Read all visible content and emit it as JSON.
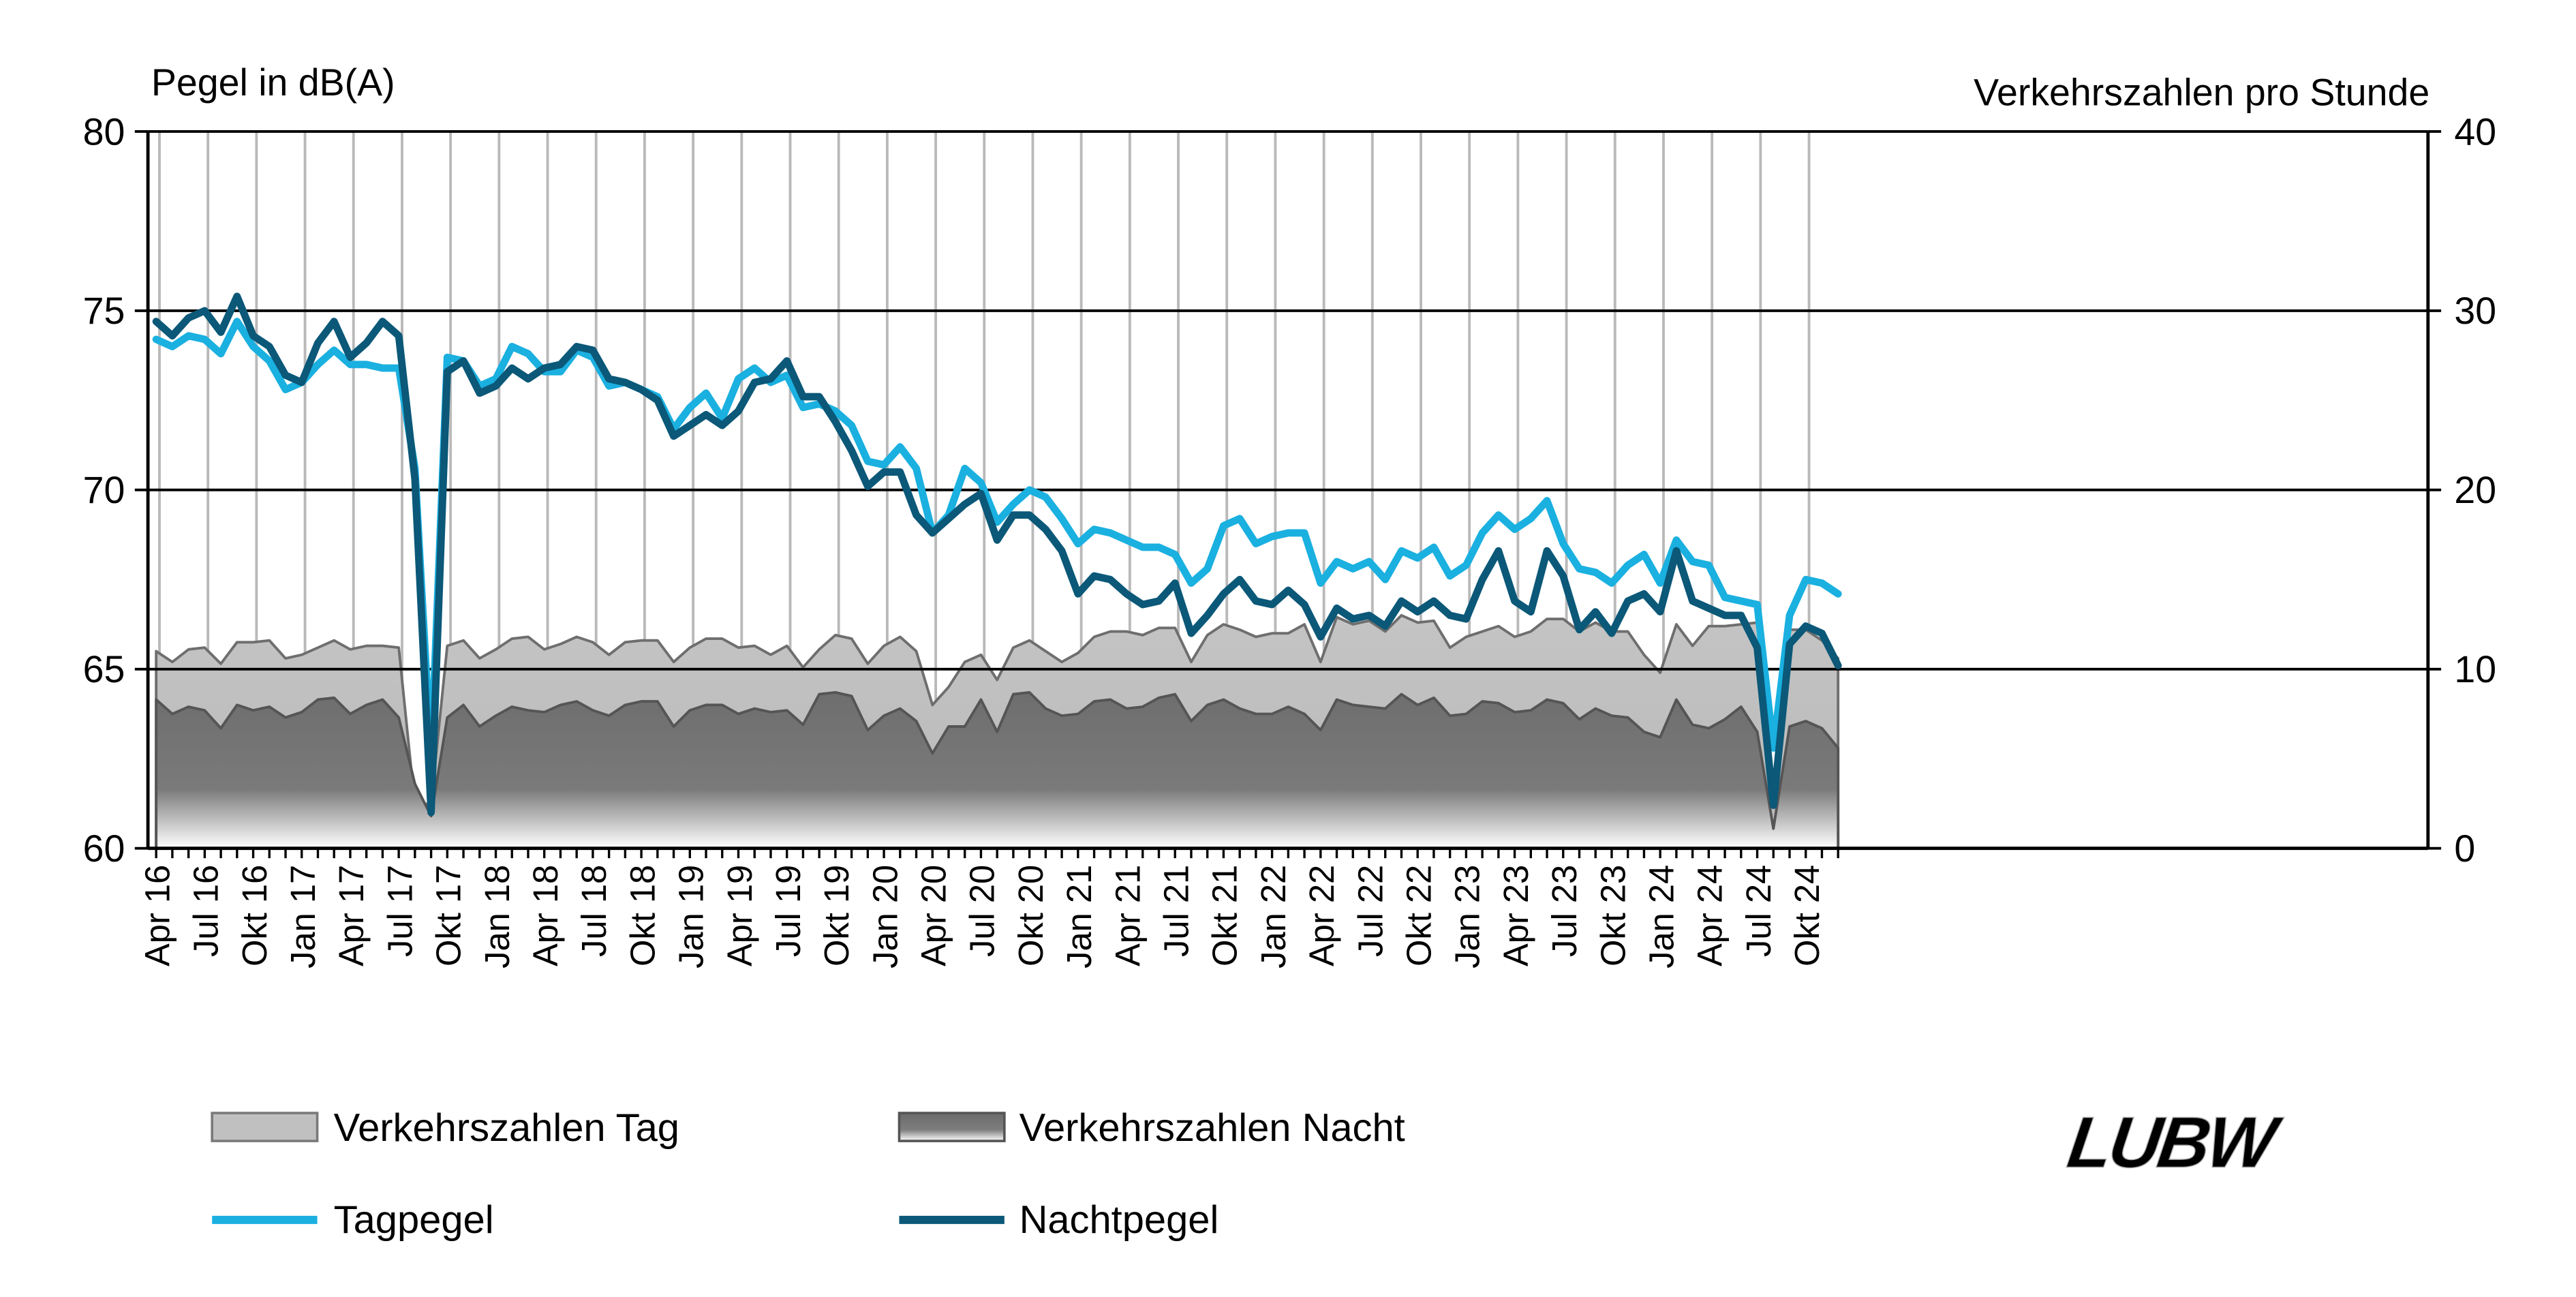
{
  "chart_data": {
    "type": "area+line",
    "ylabel_left": "Pegel in dB(A)",
    "ylabel_right": "Verkehrszahlen pro Stunde",
    "ylim_left": [
      60,
      80
    ],
    "ylim_right": [
      0,
      40
    ],
    "yticks_left": [
      "60",
      "65",
      "70",
      "75",
      "80"
    ],
    "yticks_right": [
      "0",
      "10",
      "20",
      "30",
      "40"
    ],
    "xticks": [
      "Apr 16",
      "Jul 16",
      "Okt 16",
      "Jan 17",
      "Apr 17",
      "Jul 17",
      "Okt 17",
      "Jan 18",
      "Apr 18",
      "Jul 18",
      "Okt 18",
      "Jan 19",
      "Apr 19",
      "Jul 19",
      "Okt 19",
      "Jan 20",
      "Apr 20",
      "Jul 20",
      "Okt 20",
      "Jan 21",
      "Apr 21",
      "Jul 21",
      "Okt 21",
      "Jan 22",
      "Apr 22",
      "Jul 22",
      "Okt 22",
      "Jan 23",
      "Apr 23",
      "Jul 23",
      "Okt 23",
      "Jan 24",
      "Apr 24",
      "Jul 24",
      "Okt 24"
    ],
    "x": [
      "2016-04",
      "2016-05",
      "2016-06",
      "2016-07",
      "2016-08",
      "2016-09",
      "2016-10",
      "2016-11",
      "2016-12",
      "2017-01",
      "2017-02",
      "2017-03",
      "2017-04",
      "2017-05",
      "2017-06",
      "2017-07",
      "2017-08",
      "2017-09",
      "2017-10",
      "2017-11",
      "2017-12",
      "2018-01",
      "2018-02",
      "2018-03",
      "2018-04",
      "2018-05",
      "2018-06",
      "2018-07",
      "2018-08",
      "2018-09",
      "2018-10",
      "2018-11",
      "2018-12",
      "2019-01",
      "2019-02",
      "2019-03",
      "2019-04",
      "2019-05",
      "2019-06",
      "2019-07",
      "2019-08",
      "2019-09",
      "2019-10",
      "2019-11",
      "2019-12",
      "2020-01",
      "2020-02",
      "2020-03",
      "2020-04",
      "2020-05",
      "2020-06",
      "2020-07",
      "2020-08",
      "2020-09",
      "2020-10",
      "2020-11",
      "2020-12",
      "2021-01",
      "2021-02",
      "2021-03",
      "2021-04",
      "2021-05",
      "2021-06",
      "2021-07",
      "2021-08",
      "2021-09",
      "2021-10",
      "2021-11",
      "2021-12",
      "2022-01",
      "2022-02",
      "2022-03",
      "2022-04",
      "2022-05",
      "2022-06",
      "2022-07",
      "2022-08",
      "2022-09",
      "2022-10",
      "2022-11",
      "2022-12",
      "2023-01",
      "2023-02",
      "2023-03",
      "2023-04",
      "2023-05",
      "2023-06",
      "2023-07",
      "2023-08",
      "2023-09",
      "2023-10",
      "2023-11",
      "2023-12",
      "2024-01",
      "2024-02",
      "2024-03",
      "2024-04",
      "2024-05",
      "2024-06",
      "2024-07",
      "2024-08",
      "2024-09",
      "2024-10",
      "2024-11",
      "2024-12"
    ],
    "series": [
      {
        "name": "Verkehrszahlen Tag",
        "axis": "right",
        "type": "area",
        "color": "#c0c0c0",
        "values": [
          11.0,
          10.4,
          11.1,
          11.2,
          10.3,
          11.5,
          11.5,
          11.6,
          10.6,
          10.8,
          11.2,
          11.6,
          11.1,
          11.3,
          11.3,
          11.2,
          2.4,
          2.5,
          11.3,
          11.6,
          10.6,
          11.1,
          11.7,
          11.8,
          11.1,
          11.4,
          11.8,
          11.5,
          10.8,
          11.5,
          11.6,
          11.6,
          10.4,
          11.2,
          11.7,
          11.7,
          11.2,
          11.3,
          10.8,
          11.3,
          10.1,
          11.1,
          11.9,
          11.7,
          10.3,
          11.3,
          11.8,
          11.0,
          8.0,
          9.0,
          10.4,
          10.8,
          9.4,
          11.2,
          11.6,
          11.0,
          10.4,
          10.9,
          11.8,
          12.1,
          12.1,
          11.9,
          12.3,
          12.3,
          10.4,
          11.9,
          12.5,
          12.2,
          11.8,
          12.0,
          12.0,
          12.5,
          10.4,
          12.9,
          12.5,
          12.7,
          12.1,
          13.0,
          12.6,
          12.7,
          11.2,
          11.8,
          12.1,
          12.4,
          11.8,
          12.1,
          12.8,
          12.8,
          12.1,
          12.6,
          12.1,
          12.1,
          10.8,
          9.8,
          12.5,
          11.3,
          12.4,
          12.4,
          12.5,
          12.6,
          2.6,
          12.2,
          12.2,
          11.6,
          10.6
        ]
      },
      {
        "name": "Verkehrszahlen Nacht",
        "axis": "right",
        "type": "area",
        "color": "#7d7d7d",
        "values": [
          8.3,
          7.5,
          7.9,
          7.7,
          6.7,
          8.0,
          7.7,
          7.9,
          7.3,
          7.6,
          8.3,
          8.4,
          7.5,
          8.0,
          8.3,
          7.3,
          3.6,
          1.8,
          7.3,
          8.0,
          6.8,
          7.4,
          7.9,
          7.7,
          7.6,
          8.0,
          8.2,
          7.7,
          7.4,
          8.0,
          8.2,
          8.2,
          6.8,
          7.7,
          8.0,
          8.0,
          7.5,
          7.8,
          7.6,
          7.7,
          6.9,
          8.6,
          8.7,
          8.5,
          6.6,
          7.4,
          7.8,
          7.1,
          5.3,
          6.8,
          6.8,
          8.3,
          6.5,
          8.6,
          8.7,
          7.8,
          7.4,
          7.5,
          8.2,
          8.3,
          7.8,
          7.9,
          8.4,
          8.6,
          7.1,
          8.0,
          8.3,
          7.8,
          7.5,
          7.5,
          7.9,
          7.5,
          6.6,
          8.3,
          8.0,
          7.9,
          7.8,
          8.6,
          8.0,
          8.4,
          7.4,
          7.5,
          8.2,
          8.1,
          7.6,
          7.7,
          8.3,
          8.1,
          7.2,
          7.8,
          7.4,
          7.3,
          6.5,
          6.2,
          8.3,
          6.9,
          6.7,
          7.2,
          7.9,
          6.5,
          1.1,
          6.8,
          7.1,
          6.7,
          5.6
        ]
      },
      {
        "name": "Tagpegel",
        "axis": "left",
        "type": "line",
        "color": "#1ab0e0",
        "values": [
          74.2,
          74.0,
          74.3,
          74.2,
          73.8,
          74.7,
          74.0,
          73.6,
          72.8,
          73.0,
          73.5,
          73.9,
          73.5,
          73.5,
          73.4,
          73.4,
          70.6,
          62.5,
          73.7,
          73.6,
          72.9,
          73.1,
          74.0,
          73.8,
          73.3,
          73.3,
          73.9,
          73.7,
          72.9,
          73.0,
          72.8,
          72.6,
          71.7,
          72.3,
          72.7,
          72.0,
          73.1,
          73.4,
          73.0,
          73.2,
          72.3,
          72.4,
          72.2,
          71.8,
          70.8,
          70.7,
          71.2,
          70.6,
          68.8,
          69.3,
          70.6,
          70.2,
          69.1,
          69.6,
          70.0,
          69.8,
          69.2,
          68.5,
          68.9,
          68.8,
          68.6,
          68.4,
          68.4,
          68.2,
          67.4,
          67.8,
          69.0,
          69.2,
          68.5,
          68.7,
          68.8,
          68.8,
          67.4,
          68.0,
          67.8,
          68.0,
          67.5,
          68.3,
          68.1,
          68.4,
          67.6,
          67.9,
          68.8,
          69.3,
          68.9,
          69.2,
          69.7,
          68.5,
          67.8,
          67.7,
          67.4,
          67.9,
          68.2,
          67.4,
          68.6,
          68.0,
          67.9,
          67.0,
          66.9,
          66.8,
          62.8,
          66.5,
          67.5,
          67.4,
          67.1
        ]
      },
      {
        "name": "Nachtpegel",
        "axis": "left",
        "type": "line",
        "color": "#0b5878",
        "values": [
          74.7,
          74.3,
          74.8,
          75.0,
          74.4,
          75.4,
          74.3,
          74.0,
          73.2,
          73.0,
          74.1,
          74.7,
          73.7,
          74.1,
          74.7,
          74.3,
          70.3,
          61.0,
          73.3,
          73.6,
          72.7,
          72.9,
          73.4,
          73.1,
          73.4,
          73.5,
          74.0,
          73.9,
          73.1,
          73.0,
          72.8,
          72.5,
          71.5,
          71.8,
          72.1,
          71.8,
          72.2,
          73.0,
          73.1,
          73.6,
          72.6,
          72.6,
          71.9,
          71.1,
          70.1,
          70.5,
          70.5,
          69.3,
          68.8,
          69.2,
          69.6,
          69.9,
          68.6,
          69.3,
          69.3,
          68.9,
          68.3,
          67.1,
          67.6,
          67.5,
          67.1,
          66.8,
          66.9,
          67.4,
          66.0,
          66.5,
          67.1,
          67.5,
          66.9,
          66.8,
          67.2,
          66.8,
          65.9,
          66.7,
          66.4,
          66.5,
          66.2,
          66.9,
          66.6,
          66.9,
          66.5,
          66.4,
          67.5,
          68.3,
          66.9,
          66.6,
          68.3,
          67.6,
          66.1,
          66.6,
          66.0,
          66.9,
          67.1,
          66.6,
          68.3,
          66.9,
          66.7,
          66.5,
          66.5,
          65.6,
          61.2,
          65.7,
          66.2,
          66.0,
          65.1
        ]
      }
    ]
  },
  "legend": {
    "tag_traffic": "Verkehrszahlen Tag",
    "night_traffic": "Verkehrszahlen Nacht",
    "day_level": "Tagpegel",
    "night_level": "Nachtpegel"
  },
  "logo": {
    "text": "LUBW"
  },
  "colors": {
    "day_line": "#1ab0e0",
    "night_line": "#0b5878",
    "day_area": "#c0c0c0",
    "night_area": "#7d7d7d"
  }
}
